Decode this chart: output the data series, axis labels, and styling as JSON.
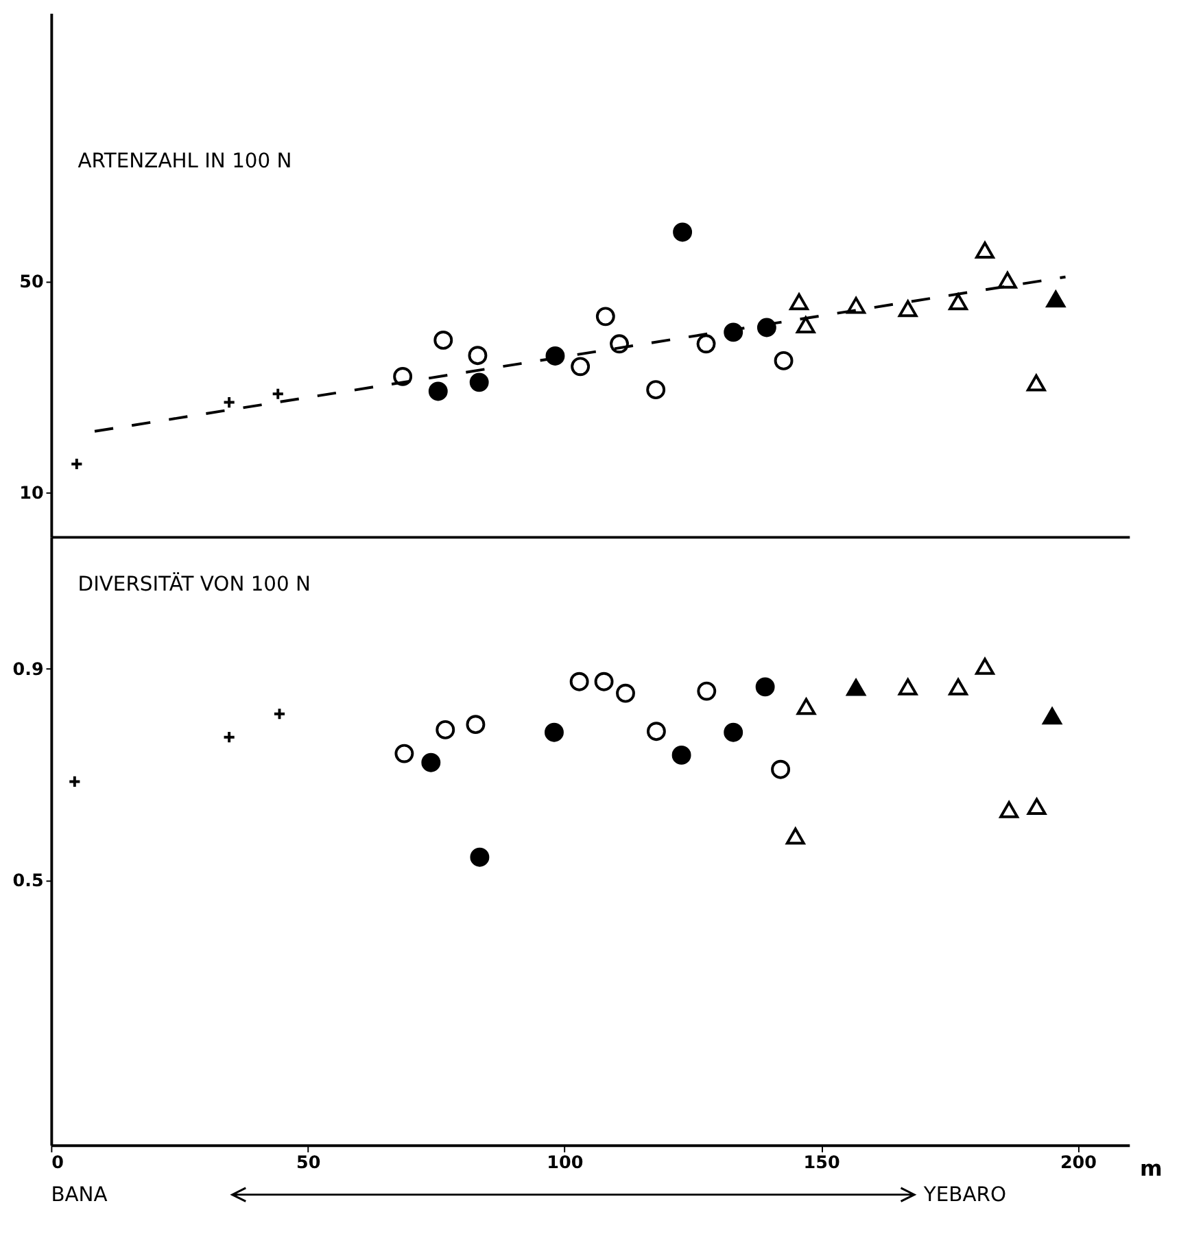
{
  "chart_data": [
    {
      "type": "scatter",
      "title": "ARTENZAHL IN 100 N",
      "xlim": [
        0,
        210
      ],
      "ylim": [
        1.6,
        101
      ],
      "yticks": [
        10,
        50
      ],
      "tick_labels": "y",
      "grid": false,
      "series": [
        {
          "color": "#000000",
          "marker": "cross",
          "x": [
            5,
            34.7,
            44.2
          ],
          "values": [
            15.4,
            27.1,
            28.7
          ]
        },
        {
          "color": "#ffffff",
          "marker": "circle",
          "x": [
            68.5,
            76.4,
            83.1,
            103.1,
            108,
            110.7,
            117.8,
            127.6,
            142.7
          ],
          "values": [
            32.0,
            38.9,
            36.0,
            33.9,
            43.4,
            38.2,
            29.5,
            38.2,
            35.0
          ]
        },
        {
          "color": "#000000",
          "marker": "circle",
          "x": [
            75.4,
            83.4,
            98.2,
            123,
            132.9,
            139.4
          ],
          "values": [
            29.2,
            30.9,
            35.9,
            59.4,
            40.4,
            41.3
          ]
        },
        {
          "color": "#ffffff",
          "marker": "triangle",
          "x": [
            145.7,
            147,
            156.8,
            166.9,
            176.7,
            181.9,
            186.3,
            191.9
          ],
          "values": [
            46.2,
            41.8,
            45.5,
            44.9,
            46.2,
            56.0,
            50.3,
            30.8
          ]
        },
        {
          "color": "#000000",
          "marker": "triangle",
          "x": [
            195.7
          ],
          "values": [
            46.7
          ]
        },
        {
          "type": "line",
          "color": "#000000",
          "line_style": "dashed",
          "x": [
            8.5,
            197.6
          ],
          "values": [
            21.6,
            50.9
          ]
        }
      ]
    },
    {
      "type": "scatter",
      "title": "DIVERSITÄT VON 100 N",
      "xlabel": "m",
      "xlim": [
        0,
        210
      ],
      "xticks": [
        0,
        50,
        100,
        150,
        200
      ],
      "ylim": [
        0,
        1.15
      ],
      "yticks": [
        0.5,
        0.9
      ],
      "grid": false,
      "annotations": [
        "BANA",
        "YEBARO"
      ],
      "series": [
        {
          "color": "#000000",
          "marker": "cross",
          "x": [
            4.6,
            34.7,
            44.5
          ],
          "values": [
            0.687,
            0.771,
            0.815
          ]
        },
        {
          "color": "#ffffff",
          "marker": "circle",
          "x": [
            68.8,
            76.8,
            82.7,
            102.9,
            107.7,
            111.9,
            117.9,
            127.7,
            142.1
          ],
          "values": [
            0.74,
            0.785,
            0.795,
            0.876,
            0.876,
            0.854,
            0.782,
            0.858,
            0.71
          ]
        },
        {
          "color": "#000000",
          "marker": "circle",
          "x": [
            74,
            83.5,
            98,
            122.8,
            132.9,
            139.1
          ],
          "values": [
            0.723,
            0.544,
            0.78,
            0.737,
            0.78,
            0.866
          ]
        },
        {
          "color": "#ffffff",
          "marker": "triangle",
          "x": [
            147.1,
            145,
            166.9,
            176.7,
            181.9,
            186.6,
            192
          ],
          "values": [
            0.829,
            0.584,
            0.866,
            0.866,
            0.905,
            0.634,
            0.64
          ]
        },
        {
          "color": "#000000",
          "marker": "triangle",
          "x": [
            156.8,
            195
          ],
          "values": [
            0.865,
            0.811
          ]
        }
      ]
    }
  ]
}
